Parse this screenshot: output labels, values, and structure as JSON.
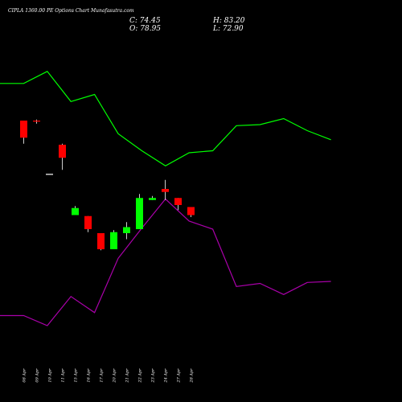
{
  "chart_data": {
    "type": "candlestick",
    "title": "CIPLA 1360.00 PE Options Chart Munafasutra.com",
    "ohlc_labels": {
      "close": "C: 74.45",
      "open": "O: 78.95",
      "high": "H: 83.20",
      "low": "L: 72.90"
    },
    "colors": {
      "background": "#000000",
      "up": "#00ff00",
      "down": "#ff0000",
      "line1": "#00ff00",
      "line2": "#aa00aa",
      "text": "#ffffff"
    },
    "ylim": [
      0,
      200
    ],
    "categories": [
      "08 Apr",
      "09 Apr",
      "10 Apr",
      "11 Apr",
      "15 Apr",
      "16 Apr",
      "17 Apr",
      "20 Apr",
      "21 Apr",
      "22 Apr",
      "23 Apr",
      "24 Apr",
      "27 Apr",
      "28 Apr"
    ],
    "candles": [
      {
        "open": 140,
        "high": 140,
        "low": 128.5,
        "close": 131.5
      },
      {
        "open": 140,
        "high": 140.5,
        "low": 138.5,
        "close": 139.5
      },
      {
        "open": 113.5,
        "high": 113.5,
        "low": 113.5,
        "close": 113.5
      },
      {
        "open": 128,
        "high": 128.5,
        "low": 115.5,
        "close": 121.5
      },
      {
        "open": 93,
        "high": 97.5,
        "low": 93,
        "close": 96.5
      },
      {
        "open": 92.5,
        "high": 92.5,
        "low": 84.5,
        "close": 86
      },
      {
        "open": 84,
        "high": 84,
        "low": 75.5,
        "close": 76
      },
      {
        "open": 76,
        "high": 85.5,
        "low": 76,
        "close": 84.5
      },
      {
        "open": 84,
        "high": 89.5,
        "low": 81,
        "close": 87
      },
      {
        "open": 86,
        "high": 103.5,
        "low": 86,
        "close": 101.5
      },
      {
        "open": 100.5,
        "high": 102.5,
        "low": 100.5,
        "close": 101.5
      },
      {
        "open": 106,
        "high": 110.5,
        "low": 100.5,
        "close": 104.5
      },
      {
        "open": 101.5,
        "high": 101.5,
        "low": 95.5,
        "close": 98
      },
      {
        "open": 97,
        "high": 97,
        "low": 92,
        "close": 93
      }
    ],
    "line_points_x": [
      0,
      1,
      2,
      3,
      4,
      5,
      6,
      7,
      8,
      9,
      10,
      11,
      12,
      13,
      14
    ],
    "line1": [
      158.5,
      158.5,
      164.5,
      149.5,
      153,
      133.5,
      125,
      117.5,
      124,
      125,
      137.5,
      138,
      141,
      135,
      130.5
    ],
    "line2": [
      43,
      43,
      38,
      52.5,
      44.5,
      71.5,
      86.5,
      101,
      90,
      86,
      57.5,
      59,
      53.5,
      59.5,
      60
    ]
  }
}
